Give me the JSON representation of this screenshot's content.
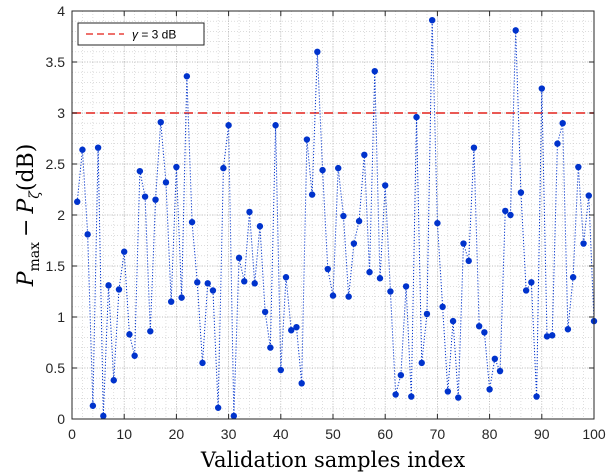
{
  "chart_data": {
    "type": "scatter",
    "title": "",
    "xlabel": "Validation samples index",
    "ylabel": "P_max − P_ζ(dB)",
    "ylabel_parts": {
      "base": "P",
      "sub1": "max",
      "minus": "−",
      "base2": "P",
      "sub2": "ζ",
      "unit": "(dB)"
    },
    "xlim": [
      0,
      100
    ],
    "ylim": [
      0,
      4
    ],
    "xticks": [
      0,
      10,
      20,
      30,
      40,
      50,
      60,
      70,
      80,
      90,
      100
    ],
    "yticks": [
      0,
      0.5,
      1,
      1.5,
      2,
      2.5,
      3,
      3.5,
      4
    ],
    "ytick_labels": [
      "0",
      "0.5",
      "1",
      "1.5",
      "2",
      "2.5",
      "3",
      "3.5",
      "4"
    ],
    "grid": "minor dotted",
    "series": [
      {
        "color": "#0033cc",
        "line_style": "dotted",
        "x": [
          1,
          2,
          3,
          4,
          5,
          6,
          7,
          8,
          9,
          10,
          11,
          12,
          13,
          14,
          15,
          16,
          17,
          18,
          19,
          20,
          21,
          22,
          23,
          24,
          25,
          26,
          27,
          28,
          29,
          30,
          31,
          32,
          33,
          34,
          35,
          36,
          37,
          38,
          39,
          40,
          41,
          42,
          43,
          44,
          45,
          46,
          47,
          48,
          49,
          50,
          51,
          52,
          53,
          54,
          55,
          56,
          57,
          58,
          59,
          60,
          61,
          62,
          63,
          64,
          65,
          66,
          67,
          68,
          69,
          70,
          71,
          72,
          73,
          74,
          75,
          76,
          77,
          78,
          79,
          80,
          81,
          82,
          83,
          84,
          85,
          86,
          87,
          88,
          89,
          90,
          91,
          92,
          93,
          94,
          95,
          96,
          97,
          98,
          99,
          100
        ],
        "values": [
          2.13,
          2.64,
          1.81,
          0.13,
          2.66,
          0.03,
          1.31,
          0.38,
          1.27,
          1.64,
          0.83,
          0.62,
          2.43,
          2.18,
          0.86,
          2.15,
          2.91,
          2.32,
          1.15,
          2.47,
          1.19,
          3.36,
          1.93,
          1.34,
          0.55,
          1.33,
          1.26,
          0.11,
          2.46,
          2.88,
          0.03,
          1.58,
          1.35,
          2.03,
          1.33,
          1.89,
          1.05,
          0.7,
          2.88,
          0.48,
          1.39,
          0.87,
          0.9,
          0.35,
          2.74,
          2.2,
          3.6,
          2.44,
          1.47,
          1.21,
          2.46,
          1.99,
          1.2,
          1.72,
          1.94,
          2.59,
          1.44,
          3.41,
          1.38,
          2.29,
          1.25,
          0.24,
          0.43,
          1.3,
          0.22,
          2.96,
          0.55,
          1.03,
          3.91,
          1.92,
          1.1,
          0.27,
          0.96,
          0.21,
          1.72,
          1.55,
          2.66,
          0.91,
          0.85,
          0.29,
          0.59,
          0.47,
          2.04,
          2.0,
          3.81,
          2.22,
          1.26,
          1.34,
          0.22,
          3.24,
          0.81,
          0.82,
          2.7,
          2.9,
          0.88,
          1.39,
          2.47,
          1.72,
          2.19,
          0.96
        ]
      }
    ],
    "threshold": {
      "value": 3,
      "color": "#e8423c",
      "line_style": "dashed"
    },
    "legend": {
      "position": "top-left",
      "label_prefix": "γ",
      "label_suffix": " = 3 dB"
    }
  }
}
